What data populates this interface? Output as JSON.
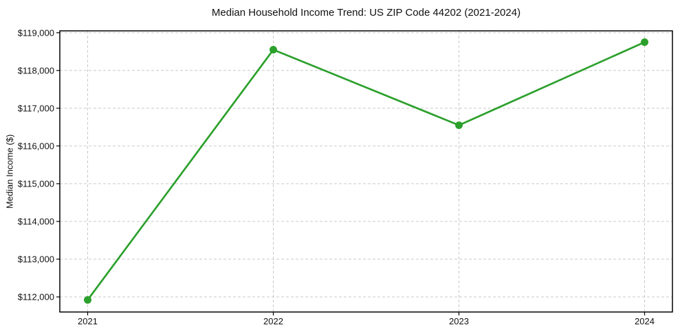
{
  "chart_data": {
    "type": "line",
    "title": "Median Household Income Trend: US ZIP Code 44202 (2021-2024)",
    "xlabel": "",
    "ylabel": "Median Income ($)",
    "x": [
      2021,
      2022,
      2023,
      2024
    ],
    "x_tick_labels": [
      "2021",
      "2022",
      "2023",
      "2024"
    ],
    "series": [
      {
        "name": "median-household-income",
        "values": [
          111920,
          118550,
          116550,
          118750
        ],
        "color": "#2ca02c",
        "marker": "circle",
        "marker_radius": 5.5,
        "line_width": 2.7
      }
    ],
    "y_ticks": [
      112000,
      113000,
      114000,
      115000,
      116000,
      117000,
      118000,
      119000
    ],
    "y_tick_labels": [
      "$112,000",
      "$113,000",
      "$114,000",
      "$115,000",
      "$116,000",
      "$117,000",
      "$118,000",
      "$119,000"
    ],
    "xlim": [
      2020.85,
      2024.15
    ],
    "ylim": [
      111600,
      119050
    ],
    "grid": true,
    "grid_color": "#c9c9c9",
    "grid_dash": "4 3",
    "axis_color": "#000000",
    "tick_length": 5,
    "background": "#ffffff",
    "legend": "none"
  }
}
